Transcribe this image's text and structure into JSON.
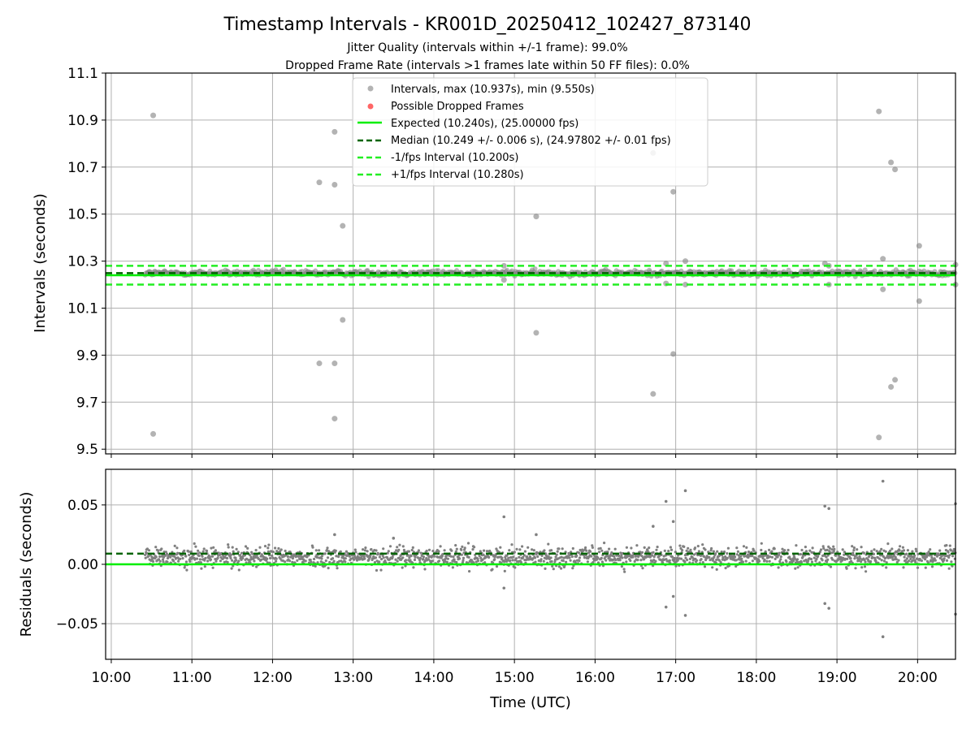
{
  "figure": {
    "title": "Timestamp Intervals - KR001D_20250412_102427_873140",
    "subtitle_1": "Jitter Quality (intervals within +/-1 frame): 99.0%",
    "subtitle_2": "Dropped Frame Rate (intervals >1 frames late within 50 FF files): 0.0%"
  },
  "colors": {
    "points": "#808080",
    "dropped": "#ff0000",
    "expected": "#00ee00",
    "median": "#006400",
    "bounds": "#22ee22",
    "grid": "#b0b0b0"
  },
  "chart_data": [
    {
      "type": "scatter",
      "ylabel": "Intervals (seconds)",
      "ylim": [
        9.48,
        11.1
      ],
      "yticks": [
        "11.1",
        "10.9",
        "10.7",
        "10.5",
        "10.3",
        "10.1",
        "9.9",
        "9.7",
        "9.5"
      ],
      "xlim_hours": [
        9.93,
        20.47
      ],
      "grid": true,
      "legend_position": "top-center",
      "legend": [
        "Intervals, max (10.937s), min (9.550s)",
        "Possible Dropped Frames",
        "Expected (10.240s), (25.00000 fps)",
        "Median (10.249 +/- 0.006 s), (24.97802 +/- 0.01 fps)",
        "-1/fps Interval (10.200s)",
        "+1/fps Interval (10.280s)"
      ],
      "reference_lines": {
        "expected": 10.24,
        "median": 10.249,
        "lower": 10.2,
        "upper": 10.28
      },
      "band": {
        "x_start_hour": 10.42,
        "center": 10.249,
        "spread": 0.012
      },
      "outliers": [
        [
          10.52,
          10.92
        ],
        [
          10.52,
          9.565
        ],
        [
          12.58,
          10.635
        ],
        [
          12.58,
          9.865
        ],
        [
          12.77,
          10.85
        ],
        [
          12.77,
          10.625
        ],
        [
          12.77,
          9.865
        ],
        [
          12.77,
          9.63
        ],
        [
          12.87,
          10.45
        ],
        [
          12.87,
          10.05
        ],
        [
          14.87,
          10.28
        ],
        [
          14.87,
          10.22
        ],
        [
          15.27,
          10.49
        ],
        [
          15.27,
          9.995
        ],
        [
          16.72,
          10.76
        ],
        [
          16.72,
          9.735
        ],
        [
          16.88,
          10.29
        ],
        [
          16.88,
          10.205
        ],
        [
          16.97,
          10.595
        ],
        [
          16.97,
          9.905
        ],
        [
          17.12,
          10.3
        ],
        [
          17.12,
          10.2
        ],
        [
          18.85,
          10.29
        ],
        [
          18.9,
          10.2
        ],
        [
          18.9,
          10.28
        ],
        [
          19.52,
          10.937
        ],
        [
          19.52,
          9.55
        ],
        [
          19.57,
          10.31
        ],
        [
          19.57,
          10.18
        ],
        [
          19.67,
          10.72
        ],
        [
          19.67,
          9.765
        ],
        [
          19.72,
          10.69
        ],
        [
          19.72,
          9.795
        ],
        [
          20.02,
          10.365
        ],
        [
          20.02,
          10.13
        ],
        [
          20.47,
          10.285
        ],
        [
          20.47,
          10.2
        ]
      ]
    },
    {
      "type": "scatter",
      "ylabel": "Residuals (seconds)",
      "xlabel": "Time (UTC)",
      "ylim": [
        -0.08,
        0.08
      ],
      "yticks": [
        "0.05",
        "0.00",
        "−0.05"
      ],
      "ytick_values": [
        0.05,
        0.0,
        -0.05
      ],
      "xticks": [
        "10:00",
        "11:00",
        "12:00",
        "13:00",
        "14:00",
        "15:00",
        "16:00",
        "17:00",
        "18:00",
        "19:00",
        "20:00"
      ],
      "xtick_hours": [
        10,
        11,
        12,
        13,
        14,
        15,
        16,
        17,
        18,
        19,
        20
      ],
      "xlim_hours": [
        9.93,
        20.47
      ],
      "grid": true,
      "reference_lines": {
        "expected": 0.0,
        "median": 0.009
      },
      "band": {
        "x_start_hour": 10.42,
        "center": 0.006,
        "spread": 0.007
      },
      "outliers": [
        [
          14.87,
          0.04
        ],
        [
          14.87,
          -0.02
        ],
        [
          15.27,
          0.025
        ],
        [
          16.72,
          0.032
        ],
        [
          16.88,
          0.053
        ],
        [
          16.88,
          -0.036
        ],
        [
          16.97,
          0.036
        ],
        [
          16.97,
          -0.027
        ],
        [
          17.12,
          0.062
        ],
        [
          17.12,
          -0.043
        ],
        [
          18.85,
          0.049
        ],
        [
          18.9,
          0.047
        ],
        [
          18.85,
          -0.033
        ],
        [
          18.9,
          -0.037
        ],
        [
          19.57,
          0.07
        ],
        [
          19.57,
          -0.061
        ],
        [
          20.47,
          0.051
        ],
        [
          20.47,
          -0.042
        ],
        [
          12.77,
          0.025
        ],
        [
          13.5,
          0.022
        ]
      ]
    }
  ]
}
